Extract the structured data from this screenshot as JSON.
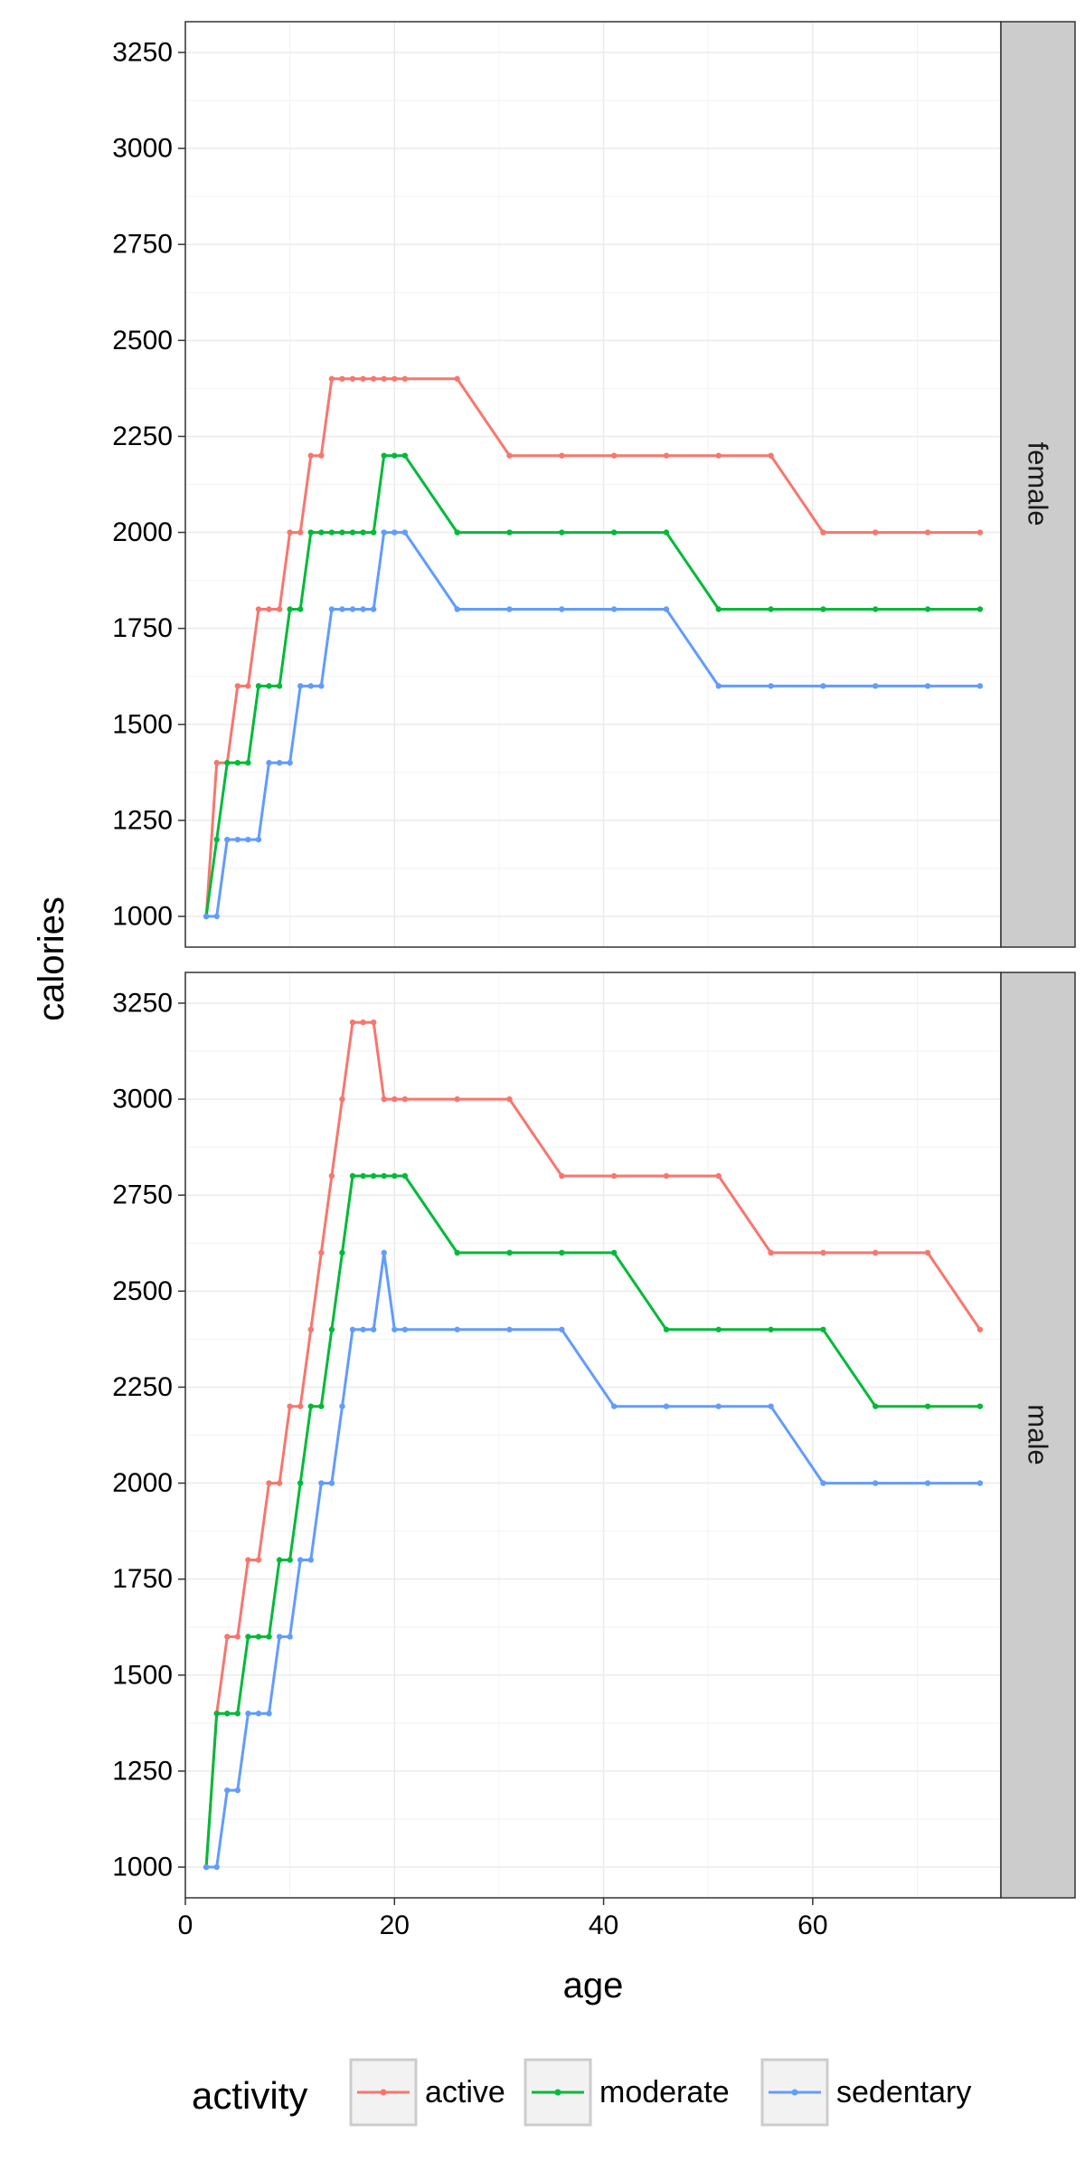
{
  "chart_data": {
    "type": "line",
    "xlabel": "age",
    "ylabel": "calories",
    "xlim": [
      0,
      78
    ],
    "ylim": [
      920,
      3330
    ],
    "x_ticks": [
      0,
      20,
      40,
      60
    ],
    "y_ticks": [
      1000,
      1250,
      1500,
      1750,
      2000,
      2250,
      2500,
      2750,
      3000,
      3250
    ],
    "grid": true,
    "legend": {
      "title": "activity",
      "position": "bottom",
      "entries": [
        "active",
        "moderate",
        "sedentary"
      ]
    },
    "x": [
      2,
      3,
      4,
      5,
      6,
      7,
      8,
      9,
      10,
      11,
      12,
      13,
      14,
      15,
      16,
      17,
      18,
      19,
      20,
      21,
      26,
      31,
      36,
      41,
      46,
      51,
      56,
      61,
      66,
      71,
      76
    ],
    "panels": [
      {
        "strip": "female",
        "series": [
          {
            "name": "active",
            "color": "#F8766D",
            "values": [
              1000,
              1400,
              1400,
              1600,
              1600,
              1800,
              1800,
              1800,
              2000,
              2000,
              2200,
              2200,
              2400,
              2400,
              2400,
              2400,
              2400,
              2400,
              2400,
              2400,
              2400,
              2200,
              2200,
              2200,
              2200,
              2200,
              2200,
              2000,
              2000,
              2000,
              2000
            ]
          },
          {
            "name": "moderate",
            "color": "#00BA38",
            "values": [
              1000,
              1200,
              1400,
              1400,
              1400,
              1600,
              1600,
              1600,
              1800,
              1800,
              2000,
              2000,
              2000,
              2000,
              2000,
              2000,
              2000,
              2200,
              2200,
              2200,
              2000,
              2000,
              2000,
              2000,
              2000,
              1800,
              1800,
              1800,
              1800,
              1800,
              1800
            ]
          },
          {
            "name": "sedentary",
            "color": "#619CFF",
            "values": [
              1000,
              1000,
              1200,
              1200,
              1200,
              1200,
              1400,
              1400,
              1400,
              1600,
              1600,
              1600,
              1800,
              1800,
              1800,
              1800,
              1800,
              2000,
              2000,
              2000,
              1800,
              1800,
              1800,
              1800,
              1800,
              1600,
              1600,
              1600,
              1600,
              1600,
              1600
            ]
          }
        ]
      },
      {
        "strip": "male",
        "series": [
          {
            "name": "active",
            "color": "#F8766D",
            "values": [
              1000,
              1400,
              1600,
              1600,
              1800,
              1800,
              2000,
              2000,
              2200,
              2200,
              2400,
              2600,
              2800,
              3000,
              3200,
              3200,
              3200,
              3000,
              3000,
              3000,
              3000,
              3000,
              2800,
              2800,
              2800,
              2800,
              2600,
              2600,
              2600,
              2600,
              2400
            ]
          },
          {
            "name": "moderate",
            "color": "#00BA38",
            "values": [
              1000,
              1400,
              1400,
              1400,
              1600,
              1600,
              1600,
              1800,
              1800,
              2000,
              2200,
              2200,
              2400,
              2600,
              2800,
              2800,
              2800,
              2800,
              2800,
              2800,
              2600,
              2600,
              2600,
              2600,
              2400,
              2400,
              2400,
              2400,
              2200,
              2200,
              2200
            ]
          },
          {
            "name": "sedentary",
            "color": "#619CFF",
            "values": [
              1000,
              1000,
              1200,
              1200,
              1400,
              1400,
              1400,
              1600,
              1600,
              1800,
              1800,
              2000,
              2000,
              2200,
              2400,
              2400,
              2400,
              2600,
              2400,
              2400,
              2400,
              2400,
              2400,
              2200,
              2200,
              2200,
              2200,
              2000,
              2000,
              2000,
              2000
            ]
          }
        ]
      }
    ]
  }
}
